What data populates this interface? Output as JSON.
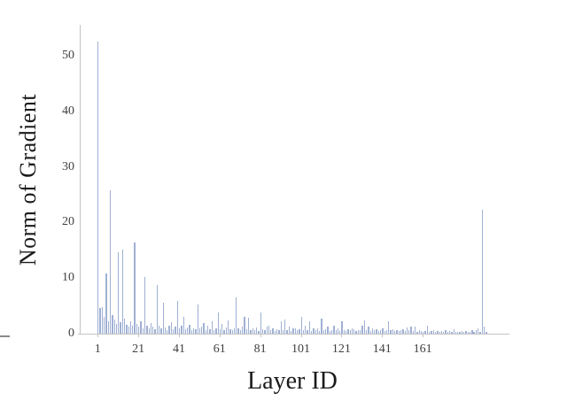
{
  "chart_data": {
    "type": "bar",
    "title": "",
    "xlabel": "Layer ID",
    "ylabel": "Norm of Gradient",
    "x_tick_labels": [
      1,
      21,
      41,
      61,
      81,
      101,
      121,
      141,
      161
    ],
    "y_tick_labels": [
      0,
      10,
      20,
      30,
      40,
      50
    ],
    "ylim": [
      0,
      55.5
    ],
    "x_start": 1,
    "grid": false,
    "legend_position": "none",
    "bar_color": "#9fb0d3",
    "axis_color": "#c3c3c3",
    "text_color": "#1a1a1a",
    "values": [
      52.5,
      4.6,
      4.8,
      3.0,
      10.8,
      2.2,
      25.8,
      3.4,
      2.6,
      1.8,
      14.6,
      2.1,
      15.2,
      2.7,
      1.6,
      1.3,
      2.2,
      1.4,
      16.4,
      1.7,
      1.2,
      2.3,
      1.0,
      10.2,
      1.5,
      0.9,
      1.9,
      1.2,
      0.8,
      8.7,
      1.4,
      0.9,
      5.6,
      1.1,
      0.7,
      1.5,
      2.0,
      0.8,
      1.2,
      5.9,
      0.9,
      1.4,
      3.1,
      0.8,
      1.1,
      1.6,
      0.7,
      1.0,
      0.8,
      5.3,
      0.9,
      1.2,
      1.9,
      0.7,
      1.5,
      0.8,
      2.2,
      0.6,
      1.0,
      3.8,
      0.8,
      1.8,
      0.7,
      1.1,
      2.4,
      0.8,
      0.6,
      1.0,
      6.5,
      0.9,
      0.7,
      1.3,
      3.1,
      0.8,
      2.8,
      0.6,
      1.0,
      0.7,
      1.1,
      0.5,
      3.8,
      0.8,
      0.6,
      1.2,
      1.4,
      0.7,
      0.9,
      0.5,
      0.8,
      0.6,
      2.2,
      0.7,
      2.5,
      0.6,
      1.2,
      0.5,
      0.9,
      1.0,
      0.6,
      0.8,
      3.0,
      0.7,
      1.5,
      0.6,
      2.3,
      0.5,
      0.9,
      0.7,
      1.0,
      0.5,
      2.7,
      0.6,
      0.8,
      1.2,
      0.5,
      0.7,
      1.5,
      0.6,
      0.9,
      0.5,
      2.2,
      0.7,
      0.5,
      0.8,
      0.6,
      1.0,
      0.8,
      0.5,
      0.7,
      0.6,
      1.5,
      2.4,
      0.6,
      1.2,
      0.5,
      1.0,
      0.6,
      0.8,
      0.5,
      0.7,
      0.9,
      0.5,
      0.6,
      2.2,
      0.7,
      0.8,
      0.5,
      0.6,
      0.5,
      0.6,
      0.8,
      0.5,
      1.1,
      0.6,
      1.2,
      0.5,
      1.3,
      0.4,
      0.6,
      0.5,
      0.4,
      0.5,
      1.5,
      0.4,
      0.5,
      0.6,
      0.4,
      0.5,
      0.4,
      0.5,
      0.4,
      0.7,
      0.4,
      0.5,
      0.4,
      0.8,
      0.4,
      0.3,
      0.4,
      0.5,
      0.3,
      0.5,
      0.4,
      0.3,
      0.6,
      0.4,
      0.7,
      0.9,
      0.4,
      22.3,
      1.3,
      0.3
    ]
  }
}
